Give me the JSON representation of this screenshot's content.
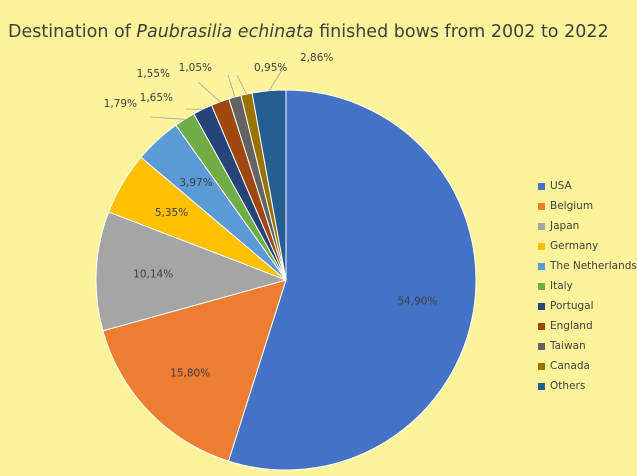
{
  "chart_data": {
    "type": "pie",
    "title": {
      "prefix": "Destination of ",
      "italic": "Paubrasilia echinata",
      "suffix": " finished bows from 2002 to 2022"
    },
    "categories": [
      "USA",
      "Belgium",
      "Japan",
      "Germany",
      "The Netherlands",
      "Italy",
      "Portugal",
      "England",
      "Taiwan",
      "Canada",
      "Others"
    ],
    "values": [
      54.9,
      15.8,
      10.14,
      5.35,
      3.97,
      1.79,
      1.65,
      1.55,
      1.05,
      0.95,
      2.86
    ],
    "labels": [
      "54,90%",
      "15,80%",
      "10,14%",
      "5,35%",
      "3,97%",
      "1,79%",
      "1,65%",
      "1,55%",
      "1,05%",
      "0,95%",
      "2,86%"
    ],
    "colors": [
      "#4472c4",
      "#ed7d31",
      "#a5a5a5",
      "#ffc000",
      "#5b9bd5",
      "#70ad47",
      "#264478",
      "#9e480e",
      "#636363",
      "#997300",
      "#255e91"
    ],
    "legend_position": "right",
    "background": "#fdf39b"
  }
}
